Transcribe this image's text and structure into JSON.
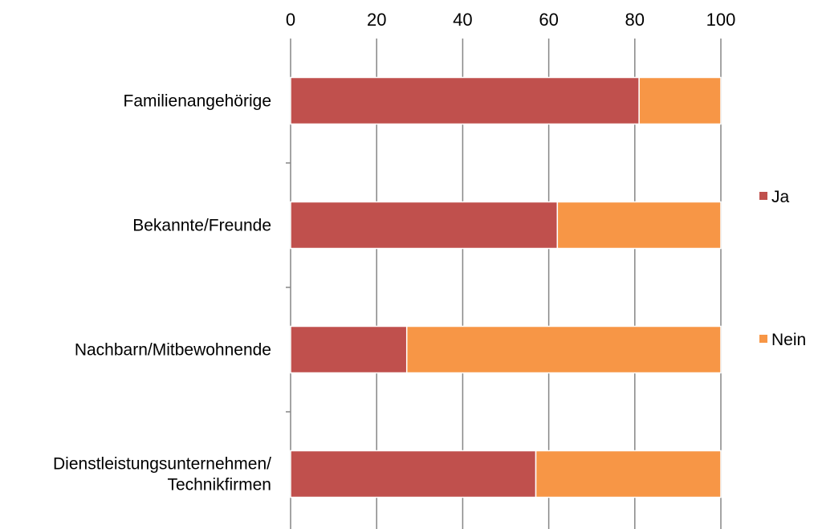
{
  "chart_data": {
    "type": "bar",
    "orientation": "horizontal",
    "stacked": true,
    "categories": [
      [
        "Familienangehörige"
      ],
      [
        "Bekannte/Freunde"
      ],
      [
        "Nachbarn/Mitbewohnende"
      ],
      [
        "Dienstleistungsunternehmen/",
        "Technikfirmen"
      ]
    ],
    "series": [
      {
        "name": "Ja",
        "color": "#c0504d",
        "values": [
          81,
          62,
          27,
          57
        ]
      },
      {
        "name": "Nein",
        "color": "#f79646",
        "values": [
          19,
          38,
          73,
          43
        ]
      }
    ],
    "xticks": [
      "0",
      "20",
      "40",
      "60",
      "80",
      "100"
    ],
    "xlim": [
      0,
      100
    ],
    "xaxis_position": "top",
    "grid": true,
    "legend_position": "right"
  }
}
